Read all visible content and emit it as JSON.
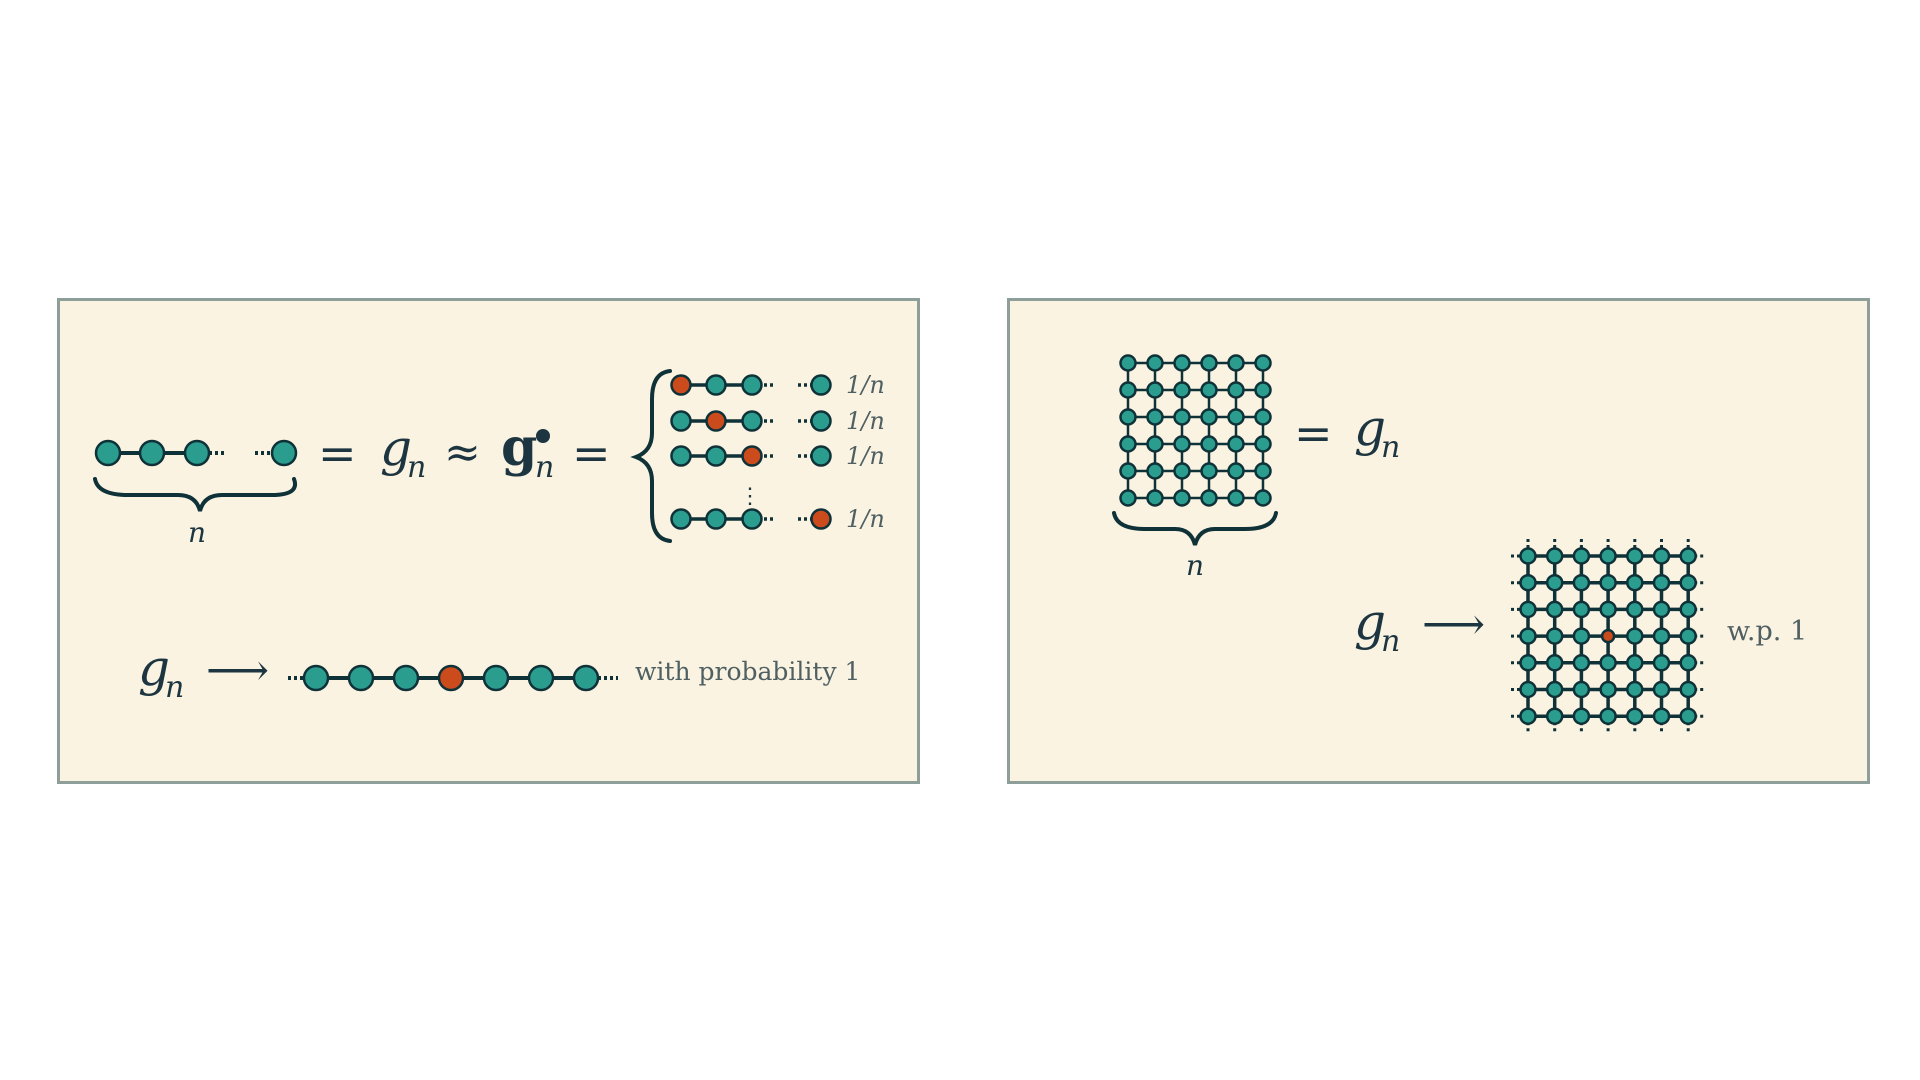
{
  "colors": {
    "background": "#ffffff",
    "panel_fill": "#faf3e1",
    "panel_border": "#8e9e99",
    "node_normal": "#2a9d8f",
    "node_marked": "#cc4b1c",
    "edge": "#0f3138"
  },
  "left_panel": {
    "brace_label": "n",
    "eq_sign": "=",
    "g": "g",
    "sub_n": "n",
    "approx": "≈",
    "bold_g": "g",
    "bullet": "•",
    "eq_sign_2": "=",
    "cases_prob_label": "1/n",
    "cases_vdots": "⋮",
    "cases": [
      {
        "marked_index": 0,
        "last_marked": false
      },
      {
        "marked_index": 1,
        "last_marked": false
      },
      {
        "marked_index": 2,
        "last_marked": false
      },
      {
        "marked_index": null,
        "last_marked": true
      }
    ],
    "limit_arrow": "⟶",
    "limit_chain_marked_index": 3,
    "limit_chain_length": 7,
    "limit_text": "with probability 1"
  },
  "right_panel": {
    "grid_size": 6,
    "brace_label": "n",
    "eq_sign": "=",
    "g": "g",
    "sub_n": "n",
    "limit_arrow": "⟶",
    "limit_grid_size": 7,
    "limit_marked_cell": [
      3,
      3
    ],
    "limit_text": "w.p.  1"
  }
}
